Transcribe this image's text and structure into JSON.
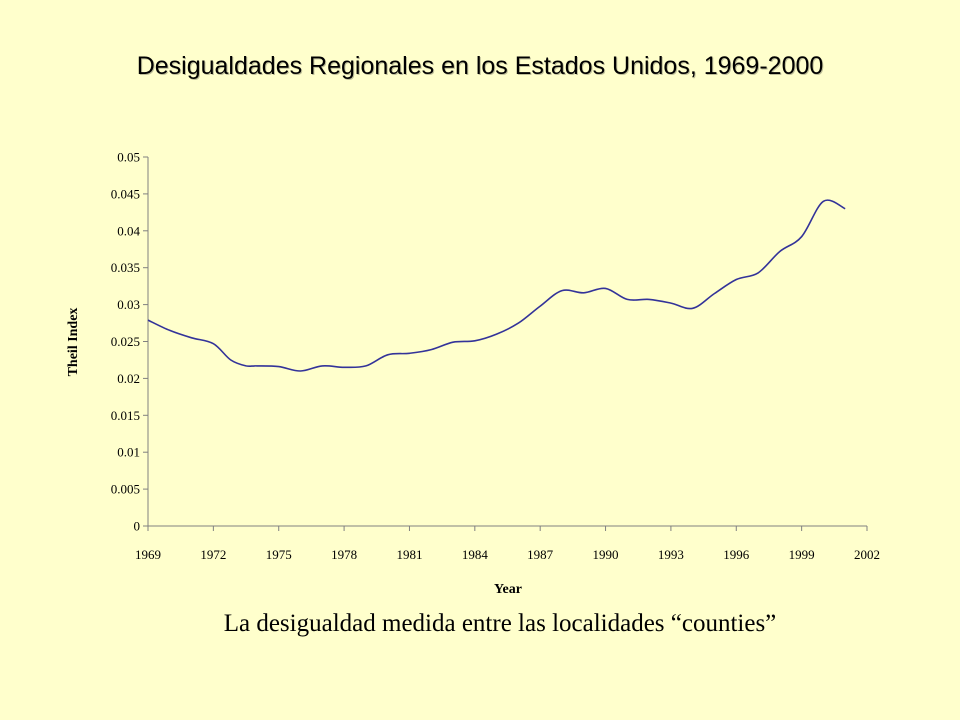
{
  "title": "Desigualdades Regionales en los Estados Unidos, 1969-2000",
  "caption": "La desigualdad medida entre las localidades “counties”",
  "colors": {
    "background": "#ffffcc",
    "line": "#333399",
    "axis": "#808080"
  },
  "chart_data": {
    "type": "line",
    "title": "",
    "xlabel": "Year",
    "ylabel": "Theil Index",
    "xlim": [
      1969,
      2002
    ],
    "ylim": [
      0,
      0.05
    ],
    "grid": false,
    "x_ticks": [
      "1969",
      "1972",
      "1975",
      "1978",
      "1981",
      "1984",
      "1987",
      "1990",
      "1993",
      "1996",
      "1999",
      "2002"
    ],
    "y_ticks": [
      "0",
      "0.005",
      "0.01",
      "0.015",
      "0.02",
      "0.025",
      "0.03",
      "0.035",
      "0.04",
      "0.045",
      "0.05"
    ],
    "series": [
      {
        "name": "",
        "x": [
          1969,
          1970,
          1971,
          1972,
          1972.8,
          1973.5,
          1974,
          1975,
          1976,
          1977,
          1978,
          1979,
          1980,
          1981,
          1982,
          1983,
          1984,
          1985,
          1986,
          1987,
          1988,
          1989,
          1990,
          1991,
          1992,
          1993,
          1994,
          1995,
          1996,
          1997,
          1998,
          1999,
          2000,
          2001
        ],
        "y": [
          0.0279,
          0.0265,
          0.0255,
          0.0247,
          0.0225,
          0.0217,
          0.0217,
          0.0216,
          0.021,
          0.0217,
          0.0215,
          0.0217,
          0.0232,
          0.0234,
          0.0239,
          0.0249,
          0.0251,
          0.026,
          0.0275,
          0.0298,
          0.0319,
          0.0316,
          0.0322,
          0.0307,
          0.0307,
          0.0302,
          0.0295,
          0.0315,
          0.0334,
          0.0343,
          0.0372,
          0.0392,
          0.044,
          0.043
        ]
      }
    ]
  }
}
